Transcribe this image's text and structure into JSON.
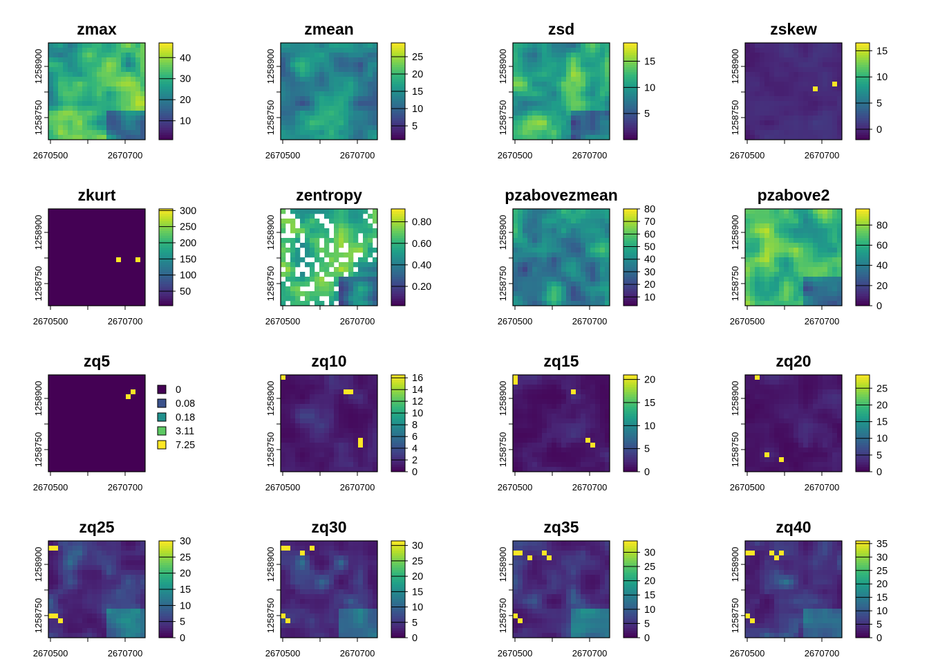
{
  "chart_data": [
    {
      "type": "heatmap",
      "title": "zmax",
      "x_tick_labels": [
        "2670500",
        "2670700"
      ],
      "y_tick_labels": [
        "1258900",
        "1258750"
      ],
      "legend_ticks": [
        "10",
        "20",
        "30",
        "40"
      ],
      "legend_values": [
        10,
        20,
        30,
        40
      ],
      "range": [
        1,
        47
      ],
      "pattern": "high",
      "missing": false,
      "bright": []
    },
    {
      "type": "heatmap",
      "title": "zmean",
      "x_tick_labels": [
        "2670500",
        "2670700"
      ],
      "y_tick_labels": [
        "1258900",
        "1258750"
      ],
      "legend_ticks": [
        "5",
        "10",
        "15",
        "20",
        "25"
      ],
      "legend_values": [
        5,
        10,
        15,
        20,
        25
      ],
      "range": [
        1,
        29
      ],
      "pattern": "mid",
      "missing": false,
      "bright": []
    },
    {
      "type": "heatmap",
      "title": "zsd",
      "x_tick_labels": [
        "2670500",
        "2670700"
      ],
      "y_tick_labels": [
        "1258900",
        "1258750"
      ],
      "legend_ticks": [
        "5",
        "10",
        "15"
      ],
      "legend_values": [
        5,
        10,
        15
      ],
      "range": [
        0,
        18.5
      ],
      "pattern": "high",
      "missing": false,
      "bright": []
    },
    {
      "type": "heatmap",
      "title": "zskew",
      "x_tick_labels": [
        "2670500",
        "2670700"
      ],
      "y_tick_labels": [
        "1258900",
        "1258750"
      ],
      "legend_ticks": [
        "0",
        "5",
        "10",
        "15"
      ],
      "legend_values": [
        0,
        5,
        10,
        15
      ],
      "range": [
        -2,
        16.5
      ],
      "pattern": "low",
      "missing": false,
      "bright": [
        [
          14,
          9
        ],
        [
          18,
          8
        ]
      ]
    },
    {
      "type": "heatmap",
      "title": "zkurt",
      "x_tick_labels": [
        "2670500",
        "2670700"
      ],
      "y_tick_labels": [
        "1258900",
        "1258750"
      ],
      "legend_ticks": [
        "50",
        "100",
        "150",
        "200",
        "250",
        "300"
      ],
      "legend_values": [
        50,
        100,
        150,
        200,
        250,
        300
      ],
      "range": [
        5,
        305
      ],
      "pattern": "min",
      "missing": false,
      "bright": [
        [
          14,
          10
        ],
        [
          18,
          10
        ]
      ]
    },
    {
      "type": "heatmap",
      "title": "zentropy",
      "x_tick_labels": [
        "2670500",
        "2670700"
      ],
      "y_tick_labels": [
        "1258900",
        "1258750"
      ],
      "legend_ticks": [
        "0.20",
        "0.40",
        "0.60",
        "0.80"
      ],
      "legend_values": [
        0.2,
        0.4,
        0.6,
        0.8
      ],
      "range": [
        0.02,
        0.92
      ],
      "pattern": "high",
      "missing": true,
      "bright": []
    },
    {
      "type": "heatmap",
      "title": "pzabovezmean",
      "x_tick_labels": [
        "2670500",
        "2670700"
      ],
      "y_tick_labels": [
        "1258900",
        "1258750"
      ],
      "legend_ticks": [
        "10",
        "20",
        "30",
        "40",
        "50",
        "60",
        "70",
        "80"
      ],
      "legend_values": [
        10,
        20,
        30,
        40,
        50,
        60,
        70,
        80
      ],
      "range": [
        3,
        80
      ],
      "pattern": "mid",
      "missing": false,
      "bright": []
    },
    {
      "type": "heatmap",
      "title": "pzabove2",
      "x_tick_labels": [
        "2670500",
        "2670700"
      ],
      "y_tick_labels": [
        "1258900",
        "1258750"
      ],
      "legend_ticks": [
        "0",
        "20",
        "40",
        "60",
        "80"
      ],
      "legend_values": [
        0,
        20,
        40,
        60,
        80
      ],
      "range": [
        0,
        96
      ],
      "pattern": "high",
      "missing": false,
      "bright": []
    },
    {
      "type": "heatmap",
      "title": "zq5",
      "x_tick_labels": [
        "2670500",
        "2670700"
      ],
      "y_tick_labels": [
        "1258900",
        "1258750"
      ],
      "legend_type": "categorical",
      "legend_entries": [
        "0",
        "0.08",
        "0.18",
        "3.11",
        "7.25"
      ],
      "legend_colors": [
        "#440154",
        "#3b528b",
        "#21908c",
        "#5dc863",
        "#fde725"
      ],
      "range": [
        0,
        7.25
      ],
      "pattern": "min",
      "missing": false,
      "bright": [
        [
          17,
          3
        ],
        [
          16,
          4
        ]
      ]
    },
    {
      "type": "heatmap",
      "title": "zq10",
      "x_tick_labels": [
        "2670500",
        "2670700"
      ],
      "y_tick_labels": [
        "1258900",
        "1258750"
      ],
      "legend_ticks": [
        "0",
        "2",
        "4",
        "6",
        "8",
        "10",
        "12",
        "14",
        "16"
      ],
      "legend_values": [
        0,
        2,
        4,
        6,
        8,
        10,
        12,
        14,
        16
      ],
      "range": [
        0,
        16.5
      ],
      "pattern": "lowq",
      "missing": false,
      "bright": [
        [
          0,
          0
        ],
        [
          13,
          3
        ],
        [
          14,
          3
        ],
        [
          16,
          13
        ],
        [
          16,
          14
        ]
      ]
    },
    {
      "type": "heatmap",
      "title": "zq15",
      "x_tick_labels": [
        "2670500",
        "2670700"
      ],
      "y_tick_labels": [
        "1258900",
        "1258750"
      ],
      "legend_ticks": [
        "0",
        "5",
        "10",
        "15",
        "20"
      ],
      "legend_values": [
        0,
        5,
        10,
        15,
        20
      ],
      "range": [
        0,
        21
      ],
      "pattern": "lowq",
      "missing": false,
      "bright": [
        [
          0,
          0
        ],
        [
          0,
          1
        ],
        [
          12,
          3
        ],
        [
          15,
          13
        ],
        [
          16,
          14
        ]
      ]
    },
    {
      "type": "heatmap",
      "title": "zq20",
      "x_tick_labels": [
        "2670500",
        "2670700"
      ],
      "y_tick_labels": [
        "1258900",
        "1258750"
      ],
      "legend_ticks": [
        "0",
        "5",
        "10",
        "15",
        "20",
        "25"
      ],
      "legend_values": [
        0,
        5,
        10,
        15,
        20,
        25
      ],
      "range": [
        0,
        29
      ],
      "pattern": "lowq",
      "missing": false,
      "bright": [
        [
          2,
          0
        ],
        [
          4,
          16
        ],
        [
          7,
          17
        ]
      ]
    },
    {
      "type": "heatmap",
      "title": "zq25",
      "x_tick_labels": [
        "2670500",
        "2670700"
      ],
      "y_tick_labels": [
        "1258900",
        "1258750"
      ],
      "legend_ticks": [
        "0",
        "5",
        "10",
        "15",
        "20",
        "25",
        "30"
      ],
      "legend_values": [
        0,
        5,
        10,
        15,
        20,
        25,
        30
      ],
      "range": [
        0,
        30
      ],
      "pattern": "q",
      "missing": false,
      "bright": [
        [
          0,
          1
        ],
        [
          1,
          1
        ],
        [
          0,
          15
        ],
        [
          1,
          15
        ],
        [
          2,
          16
        ]
      ]
    },
    {
      "type": "heatmap",
      "title": "zq30",
      "x_tick_labels": [
        "2670500",
        "2670700"
      ],
      "y_tick_labels": [
        "1258900",
        "1258750"
      ],
      "legend_ticks": [
        "0",
        "5",
        "10",
        "15",
        "20",
        "25",
        "30"
      ],
      "legend_values": [
        0,
        5,
        10,
        15,
        20,
        25,
        30
      ],
      "range": [
        0,
        31.5
      ],
      "pattern": "q",
      "missing": false,
      "bright": [
        [
          0,
          1
        ],
        [
          1,
          1
        ],
        [
          4,
          2
        ],
        [
          6,
          1
        ],
        [
          0,
          15
        ],
        [
          1,
          16
        ]
      ]
    },
    {
      "type": "heatmap",
      "title": "zq35",
      "x_tick_labels": [
        "2670500",
        "2670700"
      ],
      "y_tick_labels": [
        "1258900",
        "1258750"
      ],
      "legend_ticks": [
        "0",
        "5",
        "10",
        "15",
        "20",
        "25",
        "30"
      ],
      "legend_values": [
        0,
        5,
        10,
        15,
        20,
        25,
        30
      ],
      "range": [
        0,
        34
      ],
      "pattern": "q",
      "missing": false,
      "bright": [
        [
          0,
          2
        ],
        [
          1,
          2
        ],
        [
          3,
          3
        ],
        [
          6,
          2
        ],
        [
          7,
          3
        ],
        [
          0,
          15
        ],
        [
          1,
          16
        ]
      ]
    },
    {
      "type": "heatmap",
      "title": "zq40",
      "x_tick_labels": [
        "2670500",
        "2670700"
      ],
      "y_tick_labels": [
        "1258900",
        "1258750"
      ],
      "legend_ticks": [
        "0",
        "5",
        "10",
        "15",
        "20",
        "25",
        "30",
        "35"
      ],
      "legend_values": [
        0,
        5,
        10,
        15,
        20,
        25,
        30,
        35
      ],
      "range": [
        0,
        36
      ],
      "pattern": "q",
      "missing": false,
      "bright": [
        [
          0,
          2
        ],
        [
          1,
          2
        ],
        [
          5,
          2
        ],
        [
          6,
          3
        ],
        [
          7,
          2
        ],
        [
          0,
          15
        ],
        [
          1,
          16
        ]
      ]
    }
  ]
}
